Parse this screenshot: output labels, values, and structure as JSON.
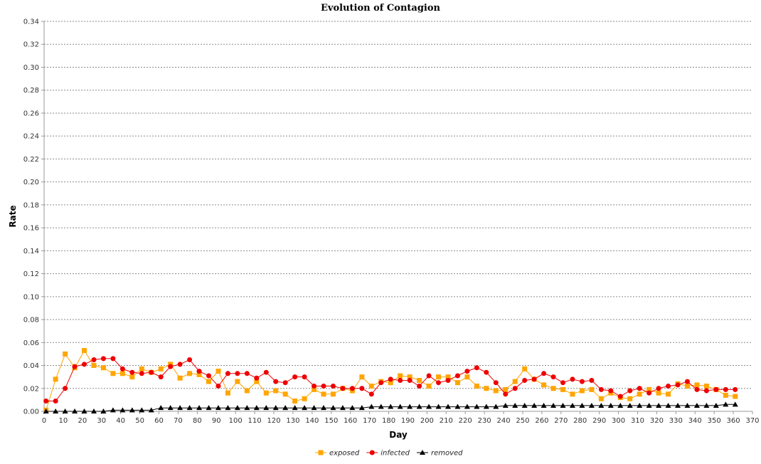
{
  "chart_data": {
    "type": "line",
    "title": "Evolution of Contagion",
    "xlabel": "Day",
    "ylabel": "Rate",
    "xlim": [
      0,
      370
    ],
    "ylim": [
      0,
      0.34
    ],
    "x_ticks": [
      "0",
      "10",
      "20",
      "30",
      "40",
      "50",
      "60",
      "70",
      "80",
      "90",
      "100",
      "110",
      "120",
      "130",
      "140",
      "150",
      "160",
      "170",
      "180",
      "190",
      "200",
      "210",
      "220",
      "230",
      "240",
      "250",
      "260",
      "270",
      "280",
      "290",
      "300",
      "310",
      "320",
      "330",
      "340",
      "350",
      "360",
      "370"
    ],
    "y_ticks": [
      "0.00",
      "0.02",
      "0.04",
      "0.06",
      "0.08",
      "0.10",
      "0.12",
      "0.14",
      "0.16",
      "0.18",
      "0.20",
      "0.22",
      "0.24",
      "0.26",
      "0.28",
      "0.30",
      "0.32",
      "0.34"
    ],
    "grid": "horizontal dashed",
    "legend_position": "bottom-center",
    "x": [
      1,
      6,
      11,
      16,
      21,
      26,
      31,
      36,
      41,
      46,
      51,
      56,
      61,
      66,
      71,
      76,
      81,
      86,
      91,
      96,
      101,
      106,
      111,
      116,
      121,
      126,
      131,
      136,
      141,
      146,
      151,
      156,
      161,
      166,
      171,
      176,
      181,
      186,
      191,
      196,
      201,
      206,
      211,
      216,
      221,
      226,
      231,
      236,
      241,
      246,
      251,
      256,
      261,
      266,
      271,
      276,
      281,
      286,
      291,
      296,
      301,
      306,
      311,
      316,
      321,
      326,
      331,
      336,
      341,
      346,
      351,
      356,
      361
    ],
    "series": [
      {
        "name": "exposed",
        "color": "#FFA500",
        "marker": "square",
        "values": [
          0.001,
          0.028,
          0.05,
          0.038,
          0.053,
          0.04,
          0.038,
          0.033,
          0.033,
          0.03,
          0.037,
          0.034,
          0.037,
          0.041,
          0.029,
          0.033,
          0.032,
          0.026,
          0.035,
          0.016,
          0.026,
          0.018,
          0.026,
          0.016,
          0.018,
          0.015,
          0.009,
          0.011,
          0.019,
          0.015,
          0.015,
          0.02,
          0.018,
          0.03,
          0.022,
          0.026,
          0.025,
          0.031,
          0.03,
          0.027,
          0.022,
          0.03,
          0.03,
          0.025,
          0.03,
          0.022,
          0.02,
          0.018,
          0.019,
          0.026,
          0.037,
          0.028,
          0.023,
          0.02,
          0.019,
          0.015,
          0.018,
          0.019,
          0.011,
          0.016,
          0.012,
          0.011,
          0.015,
          0.019,
          0.016,
          0.015,
          0.024,
          0.022,
          0.023,
          0.022,
          0.019,
          0.014,
          0.013
        ]
      },
      {
        "name": "infected",
        "color": "#EE0000",
        "marker": "circle",
        "values": [
          0.009,
          0.009,
          0.02,
          0.039,
          0.041,
          0.045,
          0.046,
          0.046,
          0.037,
          0.034,
          0.033,
          0.034,
          0.03,
          0.039,
          0.041,
          0.045,
          0.035,
          0.031,
          0.022,
          0.033,
          0.033,
          0.033,
          0.029,
          0.034,
          0.026,
          0.025,
          0.03,
          0.03,
          0.022,
          0.022,
          0.022,
          0.02,
          0.02,
          0.02,
          0.015,
          0.025,
          0.028,
          0.027,
          0.027,
          0.022,
          0.031,
          0.025,
          0.027,
          0.031,
          0.035,
          0.038,
          0.034,
          0.025,
          0.015,
          0.02,
          0.027,
          0.028,
          0.033,
          0.03,
          0.025,
          0.028,
          0.026,
          0.027,
          0.019,
          0.018,
          0.013,
          0.018,
          0.02,
          0.016,
          0.02,
          0.022,
          0.023,
          0.026,
          0.019,
          0.018,
          0.019,
          0.019,
          0.019
        ]
      },
      {
        "name": "removed",
        "color": "#000000",
        "marker": "triangle",
        "values": [
          0.0,
          0.0,
          0.0,
          0.0,
          0.0,
          0.0,
          0.0,
          0.001,
          0.001,
          0.001,
          0.001,
          0.001,
          0.003,
          0.003,
          0.003,
          0.003,
          0.003,
          0.003,
          0.003,
          0.003,
          0.003,
          0.003,
          0.003,
          0.003,
          0.003,
          0.003,
          0.003,
          0.003,
          0.003,
          0.003,
          0.003,
          0.003,
          0.003,
          0.003,
          0.004,
          0.004,
          0.004,
          0.004,
          0.004,
          0.004,
          0.004,
          0.004,
          0.004,
          0.004,
          0.004,
          0.004,
          0.004,
          0.004,
          0.005,
          0.005,
          0.005,
          0.005,
          0.005,
          0.005,
          0.005,
          0.005,
          0.005,
          0.005,
          0.005,
          0.005,
          0.005,
          0.005,
          0.005,
          0.005,
          0.005,
          0.005,
          0.005,
          0.005,
          0.005,
          0.005,
          0.005,
          0.006,
          0.006
        ]
      }
    ]
  }
}
